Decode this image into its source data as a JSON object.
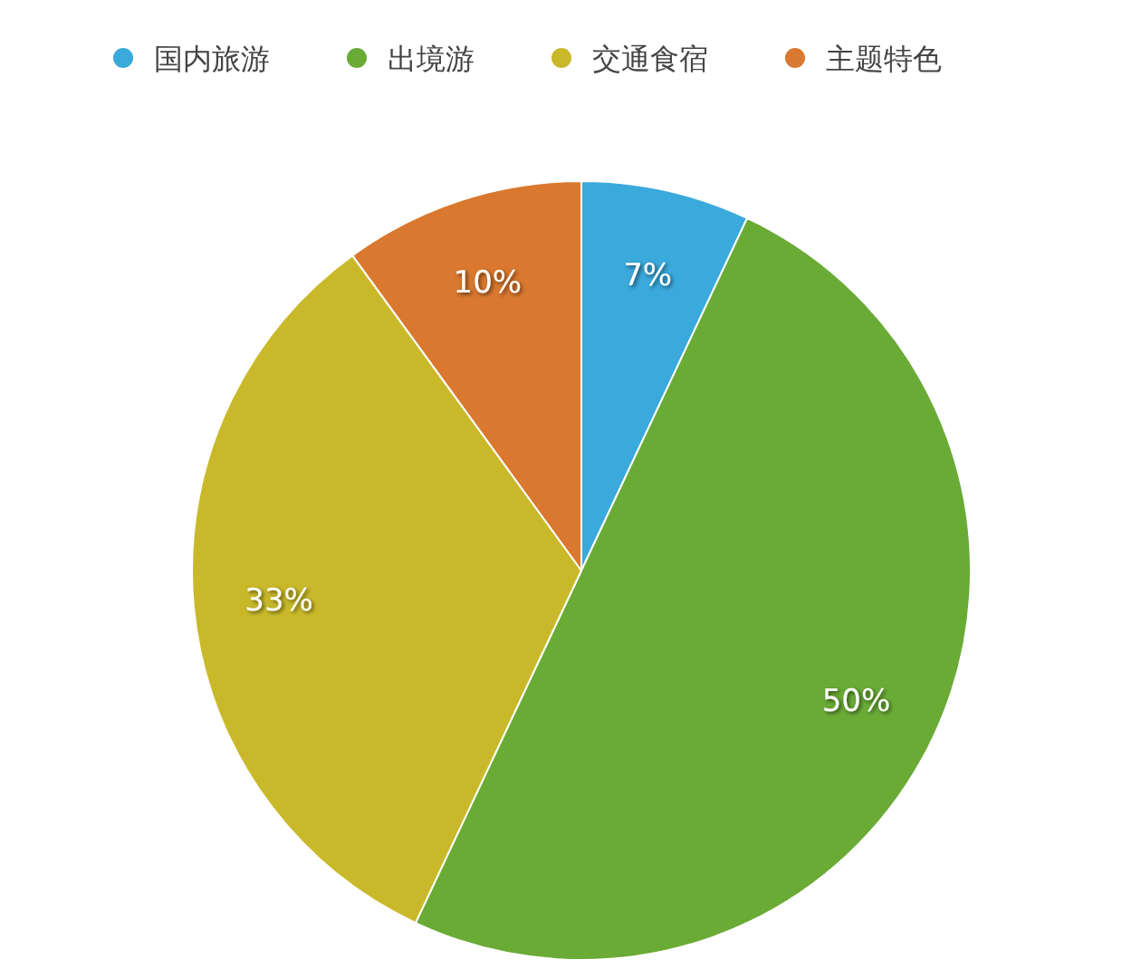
{
  "chart_data": {
    "type": "pie",
    "categories": [
      "国内旅游",
      "出境游",
      "交通食宿",
      "主题特色"
    ],
    "values": [
      7,
      50,
      33,
      10
    ],
    "colors": [
      "#3aa9dc",
      "#6aab36",
      "#c9b92a",
      "#d9782e"
    ],
    "value_labels": [
      "7%",
      "50%",
      "33%",
      "10%"
    ],
    "legend": "top"
  }
}
